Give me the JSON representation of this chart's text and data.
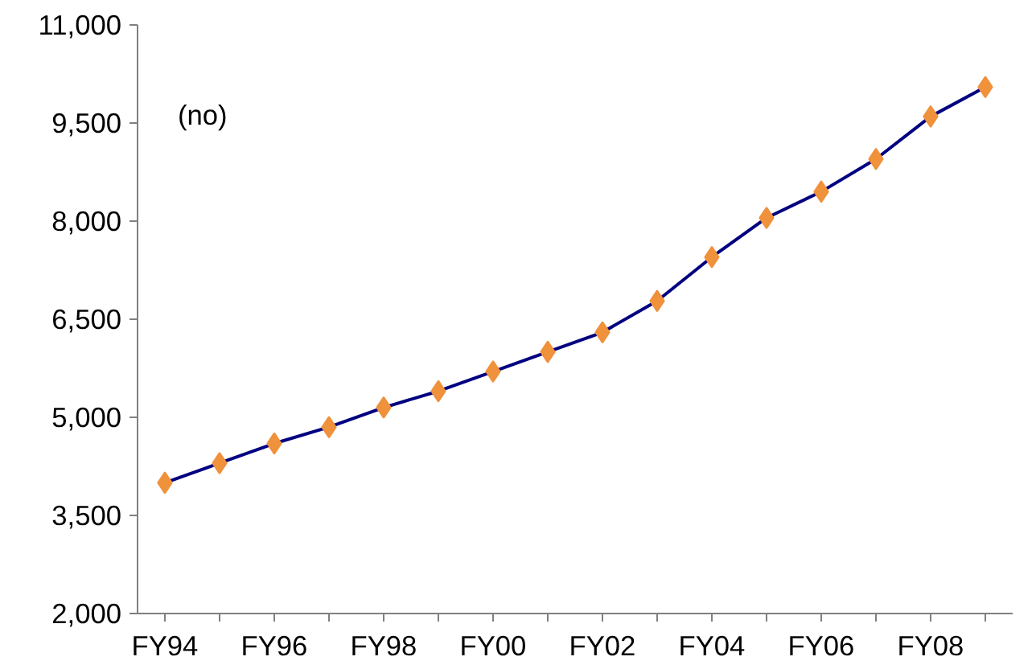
{
  "chart_data": {
    "type": "line",
    "categories": [
      "FY94",
      null,
      "FY96",
      null,
      "FY98",
      null,
      "FY00",
      null,
      "FY02",
      null,
      "FY04",
      null,
      "FY06",
      null,
      "FY08",
      null
    ],
    "series": [
      {
        "color": "#000080",
        "values": [
          4000,
          4300,
          4600,
          4850,
          5150,
          5400,
          5700,
          6000,
          6300,
          6780,
          7450,
          8050,
          8450,
          8950,
          9600,
          10050
        ]
      }
    ],
    "ylim": [
      2000,
      11000
    ],
    "yticks": [
      {
        "value": 2000,
        "label": "2,000"
      },
      {
        "value": 3500,
        "label": "3,500"
      },
      {
        "value": 5000,
        "label": "5,000"
      },
      {
        "value": 6500,
        "label": "6,500"
      },
      {
        "value": 8000,
        "label": "8,000"
      },
      {
        "value": 9500,
        "label": "9,500"
      },
      {
        "value": 11000,
        "label": "11,000"
      }
    ],
    "marker": "diamond",
    "grid": false,
    "annotations": [
      "(no)"
    ]
  }
}
